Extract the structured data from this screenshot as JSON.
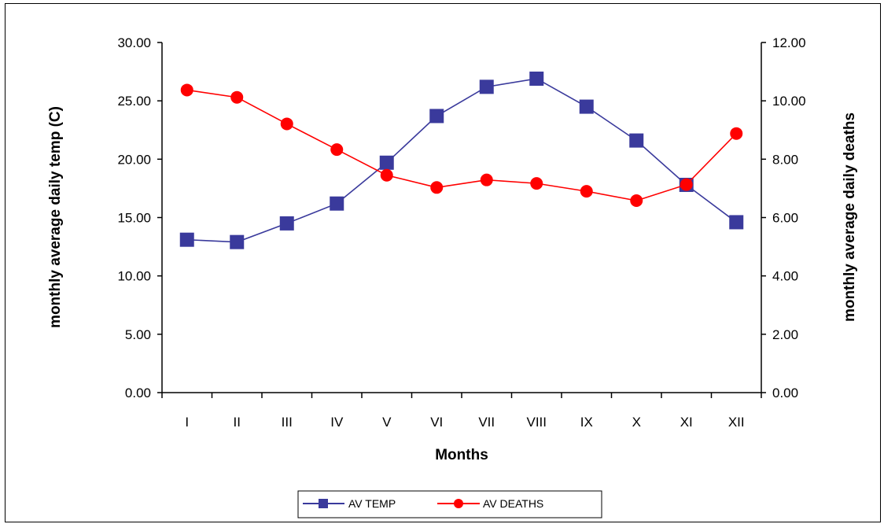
{
  "chart_data": {
    "type": "line",
    "title": "",
    "xlabel": "Months",
    "ylabel_left": "monthly average daily temp (C)",
    "ylabel_right": "monthly average daily deaths",
    "categories": [
      "I",
      "II",
      "III",
      "IV",
      "V",
      "VI",
      "VII",
      "VIII",
      "IX",
      "X",
      "XI",
      "XII"
    ],
    "ylim_left": [
      0,
      30
    ],
    "ylim_right": [
      0,
      12
    ],
    "yticks_left": [
      "0.00",
      "5.00",
      "10.00",
      "15.00",
      "20.00",
      "25.00",
      "30.00"
    ],
    "yticks_right": [
      "0.00",
      "2.00",
      "4.00",
      "6.00",
      "8.00",
      "10.00",
      "12.00"
    ],
    "grid": false,
    "legend_position": "bottom",
    "series": [
      {
        "name": "AV TEMP",
        "axis": "left",
        "color": "#3a3a9c",
        "marker": "square",
        "values": [
          13.1,
          12.9,
          14.5,
          16.2,
          19.7,
          23.7,
          26.2,
          26.9,
          24.5,
          21.6,
          17.8,
          14.6
        ]
      },
      {
        "name": "AV DEATHS",
        "axis": "right",
        "color": "#ff0000",
        "marker": "circle",
        "values": [
          10.37,
          10.12,
          9.21,
          8.33,
          7.45,
          7.03,
          7.29,
          7.17,
          6.9,
          6.58,
          7.13,
          8.88
        ]
      }
    ]
  }
}
